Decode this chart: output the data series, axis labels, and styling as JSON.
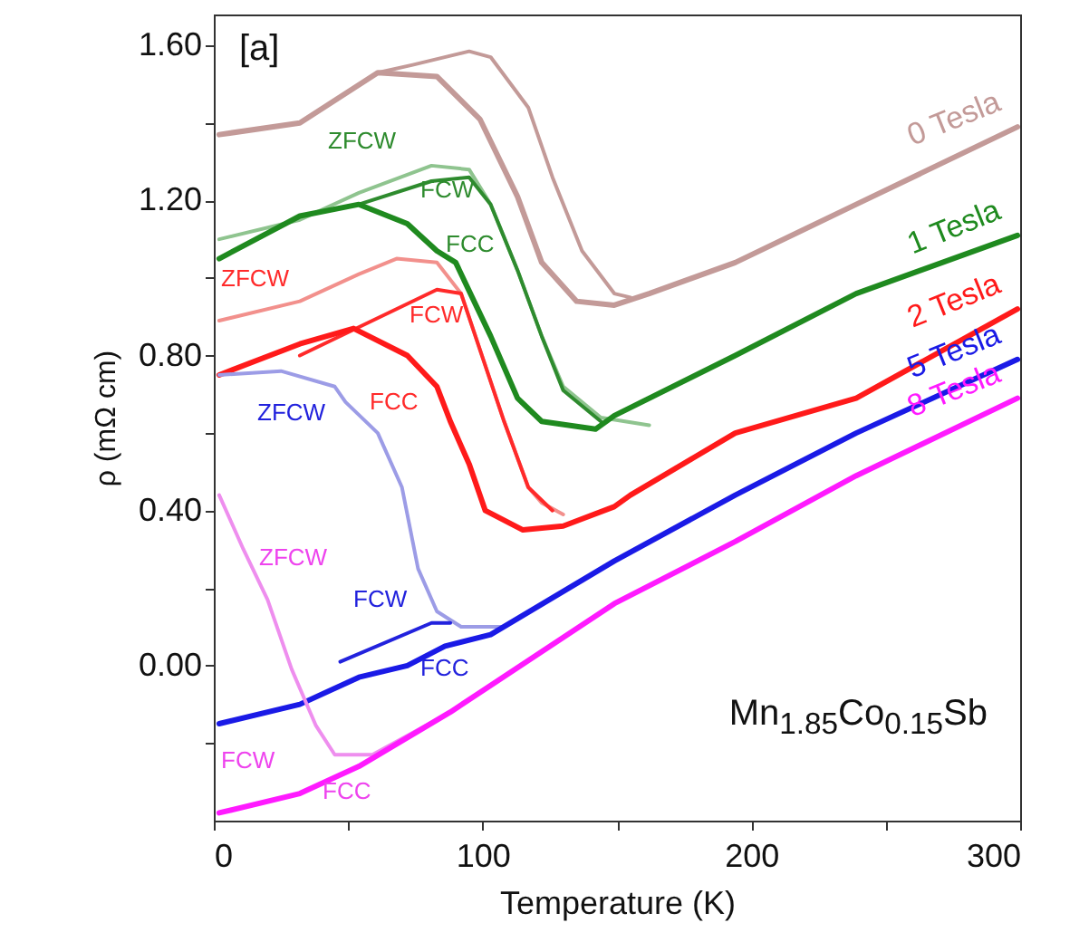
{
  "chart_data": {
    "type": "line",
    "xlabel": "Temperature (K)",
    "ylabel": "ρ (mΩ cm)",
    "xlim": [
      0,
      300
    ],
    "ylim": [
      -0.4,
      1.68
    ],
    "xticks": [
      0,
      {
        "value": 50,
        "label": null
      },
      100,
      {
        "value": 150,
        "label": null
      },
      200,
      {
        "value": 250,
        "label": null
      },
      300
    ],
    "yticks": [
      {
        "value": -0.2,
        "label": null
      },
      {
        "value": 0,
        "label": "0.00"
      },
      {
        "value": 0.2,
        "label": null
      },
      {
        "value": 0.4,
        "label": "0.40"
      },
      {
        "value": 0.6,
        "label": null
      },
      {
        "value": 0.8,
        "label": "0.80"
      },
      {
        "value": 1.0,
        "label": null
      },
      {
        "value": 1.2,
        "label": "1.20"
      },
      {
        "value": 1.4,
        "label": null
      },
      {
        "value": 1.6,
        "label": "1.60"
      }
    ],
    "grid": false,
    "series": [
      {
        "name": "0 Tesla",
        "color": "#c39a98",
        "x": [
          2,
          32,
          61,
          83,
          99,
          113,
          122,
          135,
          149,
          162,
          194,
          239,
          299
        ],
        "values": [
          1.37,
          1.4,
          1.53,
          1.52,
          1.41,
          1.21,
          1.04,
          0.94,
          0.93,
          0.96,
          1.04,
          1.19,
          1.39
        ]
      },
      {
        "color": "#c39a98",
        "x": [
          61,
          74,
          95,
          103,
          117,
          126,
          137,
          149,
          155
        ],
        "values": [
          1.53,
          1.55,
          1.585,
          1.57,
          1.44,
          1.26,
          1.07,
          0.96,
          0.95
        ]
      },
      {
        "color": "#8fc48f",
        "x": [
          2,
          32,
          54,
          81,
          95,
          103,
          113,
          122,
          130,
          144,
          162
        ],
        "values": [
          1.1,
          1.15,
          1.22,
          1.29,
          1.28,
          1.19,
          1.02,
          0.85,
          0.72,
          0.64,
          0.62
        ]
      },
      {
        "color": "#2e8b2e",
        "x": [
          54,
          81,
          95,
          103,
          113,
          122,
          130,
          144
        ],
        "values": [
          1.19,
          1.25,
          1.26,
          1.19,
          1.02,
          0.85,
          0.71,
          0.63
        ]
      },
      {
        "name": "1 Tesla",
        "color": "#1f8a1f",
        "x": [
          2,
          32,
          54,
          72,
          83,
          90,
          103,
          113,
          122,
          142,
          149,
          194,
          239,
          299
        ],
        "values": [
          1.05,
          1.16,
          1.19,
          1.14,
          1.07,
          1.04,
          0.85,
          0.69,
          0.63,
          0.61,
          0.645,
          0.8,
          0.96,
          1.11
        ]
      },
      {
        "color": "#f2908c",
        "x": [
          2,
          32,
          54,
          68,
          83,
          92,
          108,
          117,
          122,
          130
        ],
        "values": [
          0.89,
          0.94,
          1.01,
          1.05,
          1.04,
          0.96,
          0.63,
          0.46,
          0.42,
          0.39
        ]
      },
      {
        "color": "#ff2a2a",
        "x": [
          32,
          83,
          92,
          108,
          117,
          126
        ],
        "values": [
          0.8,
          0.97,
          0.96,
          0.63,
          0.46,
          0.4
        ]
      },
      {
        "name": "2 Tesla",
        "color": "#ff1a1a",
        "x": [
          2,
          32,
          52,
          72,
          83,
          88,
          95,
          101,
          115,
          130,
          149,
          155,
          194,
          239,
          299
        ],
        "values": [
          0.75,
          0.83,
          0.87,
          0.8,
          0.72,
          0.63,
          0.52,
          0.4,
          0.35,
          0.36,
          0.41,
          0.44,
          0.6,
          0.69,
          0.92
        ]
      },
      {
        "color": "#9c9ce6",
        "x": [
          2,
          25,
          45,
          49,
          61,
          70,
          76,
          83,
          92,
          108
        ],
        "values": [
          0.75,
          0.76,
          0.72,
          0.68,
          0.6,
          0.46,
          0.25,
          0.14,
          0.1,
          0.1
        ]
      },
      {
        "color": "#2222dd",
        "x": [
          47,
          81,
          88
        ],
        "values": [
          0.01,
          0.11,
          0.11
        ]
      },
      {
        "name": "5 Tesla",
        "color": "#1a1ae6",
        "x": [
          2,
          32,
          54,
          72,
          86,
          103,
          149,
          194,
          239,
          299
        ],
        "values": [
          -0.15,
          -0.1,
          -0.03,
          0.0,
          0.05,
          0.08,
          0.27,
          0.44,
          0.6,
          0.79
        ]
      },
      {
        "color": "#ee8eee",
        "x": [
          2,
          11,
          20,
          29,
          38,
          45,
          59,
          88
        ],
        "values": [
          0.44,
          0.3,
          0.17,
          -0.01,
          -0.155,
          -0.23,
          -0.23,
          -0.12
        ]
      },
      {
        "name": "8 Tesla",
        "color": "#ff1aff",
        "x": [
          2,
          32,
          54,
          88,
          149,
          194,
          239,
          299
        ],
        "values": [
          -0.38,
          -0.33,
          -0.26,
          -0.12,
          0.16,
          0.32,
          0.49,
          0.69
        ]
      }
    ],
    "annotations": [
      "[a]",
      "Mn$_{1.85}$Co$_{0.15}$Sb",
      "ZFCW",
      "FCW",
      "FCC",
      "ZFCW",
      "FCW",
      "FCC",
      "ZFCW",
      "FCW",
      "FCC",
      "ZFCW",
      "FCW",
      "FCC"
    ]
  }
}
